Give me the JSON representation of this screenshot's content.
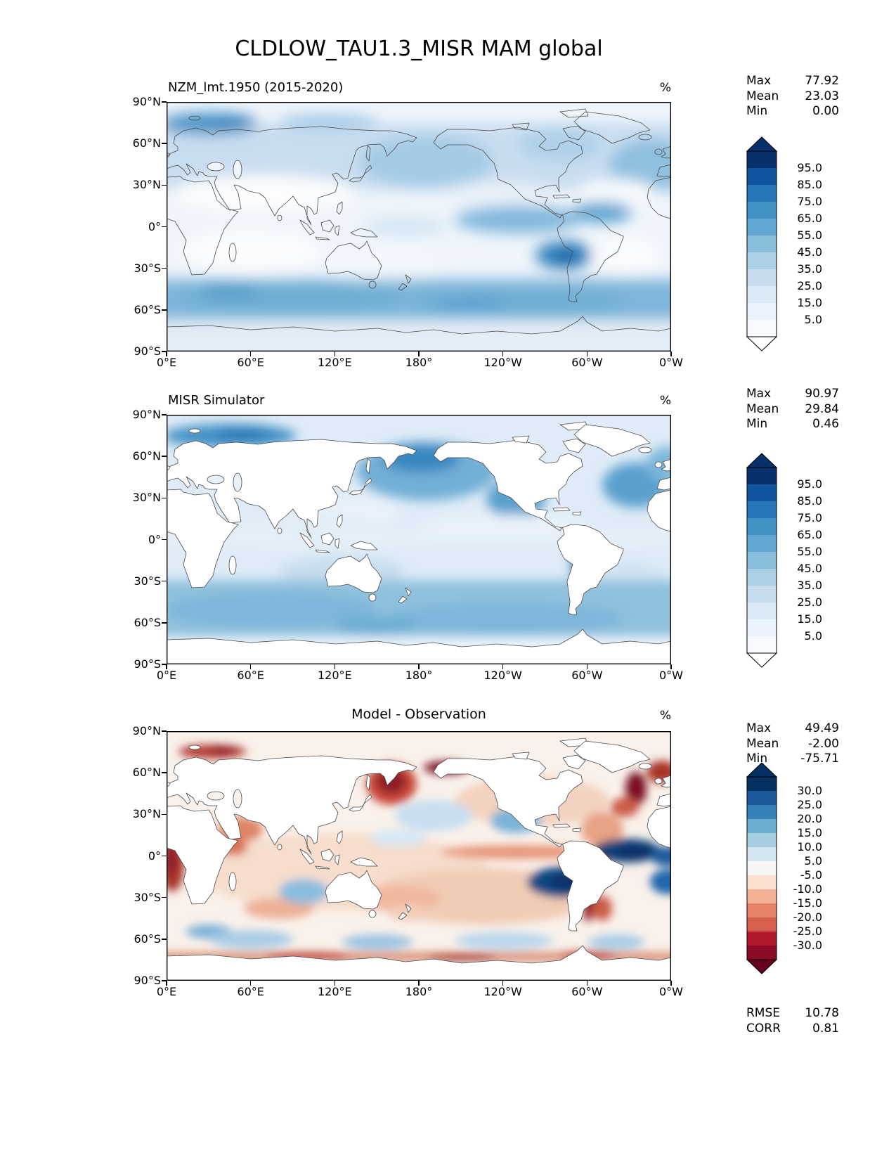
{
  "title": "CLDLOW_TAU1.3_MISR MAM global",
  "axes": {
    "lat_ticks": [
      "90°N",
      "60°N",
      "30°N",
      "0°",
      "30°S",
      "60°S",
      "90°S"
    ],
    "lon_ticks": [
      "0°E",
      "60°E",
      "120°E",
      "180°",
      "120°W",
      "60°W",
      "0°W"
    ]
  },
  "panels": [
    {
      "subtitle": "NZM_lmt.1950 (2015-2020)",
      "units": "%",
      "stats": {
        "max_label": "Max",
        "max": "77.92",
        "mean_label": "Mean",
        "mean": "23.03",
        "min_label": "Min",
        "min": "0.00"
      }
    },
    {
      "subtitle": "MISR Simulator",
      "units": "%",
      "stats": {
        "max_label": "Max",
        "max": "90.97",
        "mean_label": "Mean",
        "mean": "29.84",
        "min_label": "Min",
        "min": "0.46"
      }
    },
    {
      "subtitle": "Model - Observation",
      "units": "%",
      "stats": {
        "max_label": "Max",
        "max": "49.49",
        "mean_label": "Mean",
        "mean": "-2.00",
        "min_label": "Min",
        "min": "-75.71"
      },
      "metrics": {
        "rmse_label": "RMSE",
        "rmse": "10.78",
        "corr_label": "CORR",
        "corr": "0.81"
      }
    }
  ],
  "scales": {
    "blues": [
      "#08306b",
      "#10559f",
      "#2676b8",
      "#4292c6",
      "#61a7d2",
      "#88bedc",
      "#abd0e6",
      "#c7dcef",
      "#dbe9f6",
      "#eaf3fb",
      "#f7fbff"
    ],
    "rdbu": [
      "#053061",
      "#1b5a9b",
      "#3480b9",
      "#6aaed0",
      "#a6cee1",
      "#d3e5f0",
      "#f7f6f4",
      "#fbdfcf",
      "#f5b195",
      "#e58267",
      "#d6604d",
      "#b2182b",
      "#8a0b25"
    ]
  },
  "colorbars": [
    {
      "scale": "blues",
      "seg_h": 24,
      "arrow_top": "#08306b",
      "arrow_bottom": "#ffffff",
      "ticks": [
        "95.0",
        "85.0",
        "75.0",
        "65.0",
        "55.0",
        "45.0",
        "35.0",
        "25.0",
        "15.0",
        "5.0"
      ]
    },
    {
      "scale": "blues",
      "seg_h": 24,
      "arrow_top": "#08306b",
      "arrow_bottom": "#ffffff",
      "ticks": [
        "95.0",
        "85.0",
        "75.0",
        "65.0",
        "55.0",
        "45.0",
        "35.0",
        "25.0",
        "15.0",
        "5.0"
      ]
    },
    {
      "scale": "rdbu",
      "seg_h": 20,
      "arrow_top": "#053061",
      "arrow_bottom": "#67001f",
      "ticks": [
        "30.0",
        "25.0",
        "20.0",
        "15.0",
        "10.0",
        "5.0",
        "-5.0",
        "-10.0",
        "-15.0",
        "-20.0",
        "-25.0",
        "-30.0"
      ]
    }
  ],
  "chart_data": [
    {
      "type": "heatmap",
      "title": "NZM_lmt.1950 (2015-2020)",
      "figure_title": "CLDLOW_TAU1.3_MISR MAM global",
      "units": "%",
      "projection": "global lat-lon, 0°E to 0°W (Pacific-centered 180° at middle)",
      "x_ticks": [
        "0°E",
        "60°E",
        "120°E",
        "180°",
        "120°W",
        "60°W",
        "0°W"
      ],
      "y_ticks": [
        "90°N",
        "60°N",
        "30°N",
        "0°",
        "30°S",
        "60°S",
        "90°S"
      ],
      "colormap": "Blues",
      "levels": [
        5,
        15,
        25,
        35,
        45,
        55,
        65,
        75,
        85,
        95
      ],
      "stats": {
        "max": 77.92,
        "mean": 23.03,
        "min": 0.0
      },
      "features": "low cloud fraction: strong Southern Ocean storm-track band 45-65S, Barents Sea maximum, N Pacific enhancement, SE Pacific stratocumulus maximum near 80W/20S, tropical Atlantic blob, near-zero over subtropical deserts"
    },
    {
      "type": "heatmap",
      "title": "MISR Simulator",
      "units": "%",
      "x_ticks": [
        "0°E",
        "60°E",
        "120°E",
        "180°",
        "120°W",
        "60°W",
        "0°W"
      ],
      "y_ticks": [
        "90°N",
        "60°N",
        "30°N",
        "0°",
        "30°S",
        "60°S",
        "90°S"
      ],
      "colormap": "Blues",
      "levels": [
        5,
        15,
        25,
        35,
        45,
        55,
        65,
        75,
        85,
        95
      ],
      "stats": {
        "max": 90.97,
        "mean": 29.84,
        "min": 0.46
      },
      "features": "ocean-only retrieval look: land masked white; maxima in Bering Sea/N Pacific, Barents Sea, NE Pacific off California, NW Atlantic, Chile coastal strip, broad Southern Ocean band"
    },
    {
      "type": "heatmap",
      "title": "Model - Observation",
      "units": "%",
      "x_ticks": [
        "0°E",
        "60°E",
        "120°E",
        "180°",
        "120°W",
        "60°W",
        "0°W"
      ],
      "y_ticks": [
        "90°N",
        "60°N",
        "30°N",
        "0°",
        "30°S",
        "60°S",
        "90°S"
      ],
      "colormap": "RdBu (diverging)",
      "levels": [
        -30,
        -25,
        -20,
        -15,
        -10,
        -5,
        5,
        10,
        15,
        20,
        25,
        30
      ],
      "stats": {
        "max": 49.49,
        "mean": -2.0,
        "min": -75.71
      },
      "metrics": {
        "RMSE": 10.78,
        "CORR": 0.81
      },
      "features": "positive (blue) bias: Caribbean/tropical Atlantic, SE Pacific, S Atlantic, NE Pacific, S Indian Ocean; negative (red) bias: Sea of Okhotsk/Kamchatka, Bering coast, Labrador Sea, Barents coast, Gulf of Guinea, Arabian Sea, Peru-Chile coast, ITCZ, Antarctic coastal ring"
    }
  ]
}
